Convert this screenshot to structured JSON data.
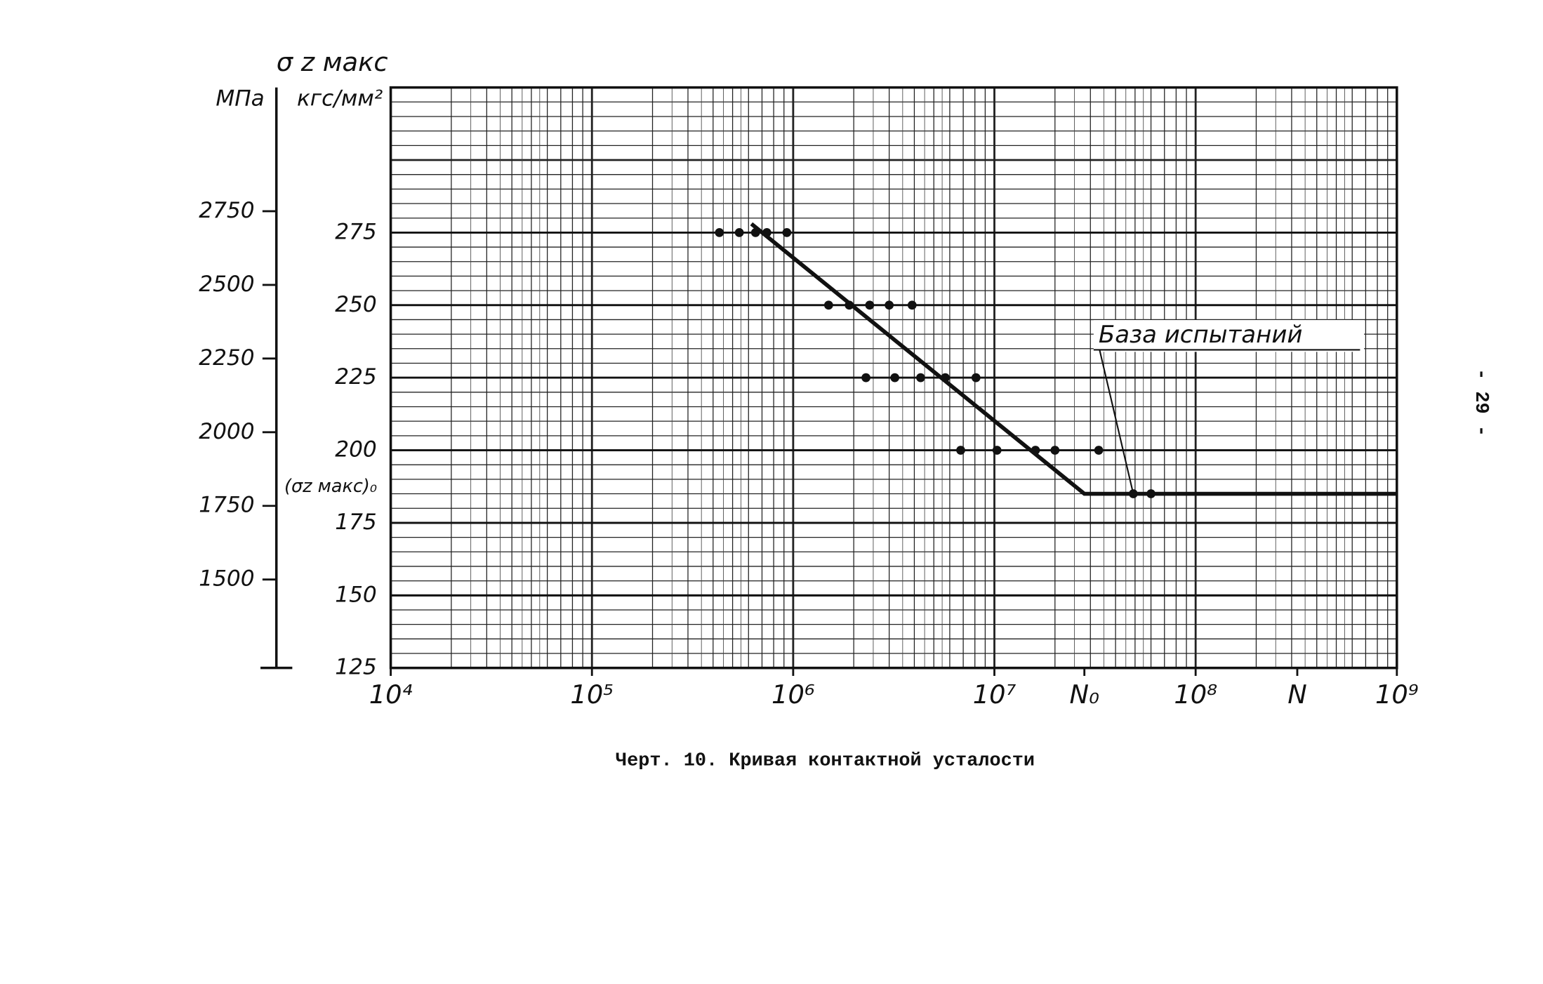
{
  "chart_data": {
    "type": "scatter",
    "title": "σ z макс",
    "y_label": "кгс/мм²",
    "y2_label": "МПа",
    "xscale": "log",
    "xlim": [
      10000,
      1000000000
    ],
    "xticks": [
      {
        "value": 10000,
        "label": "10⁴"
      },
      {
        "value": 100000,
        "label": "10⁵"
      },
      {
        "value": 1000000,
        "label": "10⁶"
      },
      {
        "value": 10000000,
        "label": "10⁷"
      },
      {
        "value": 28000000,
        "label": "N₀"
      },
      {
        "value": 100000000,
        "label": "10⁸"
      },
      {
        "value": 320000000,
        "label": "N"
      },
      {
        "value": 1000000000,
        "label": "10⁹"
      }
    ],
    "ylim": [
      125,
      325
    ],
    "yticks": [
      125,
      150,
      175,
      200,
      225,
      250,
      275
    ],
    "y2lim": [
      1200,
      3170
    ],
    "y2ticks": [
      1500,
      1750,
      2000,
      2250,
      2500,
      2750
    ],
    "grid": true,
    "series": [
      {
        "kind": "points",
        "color": "#111",
        "x": [
          430000,
          540000,
          650000,
          740000,
          930000,
          1500000,
          1900000,
          2400000,
          3000000,
          3900000,
          2300000,
          3200000,
          4300000,
          5700000,
          8100000,
          6800000,
          10300000,
          16000000,
          20000000,
          33000000,
          49000000,
          60000000
        ],
        "values": [
          275,
          275,
          275,
          275,
          275,
          250,
          250,
          250,
          250,
          250,
          225,
          225,
          225,
          225,
          225,
          200,
          200,
          200,
          200,
          200,
          185,
          185
        ]
      },
      {
        "kind": "line",
        "color": "#111",
        "x": [
          620000,
          28000000,
          1000000000
        ],
        "values": [
          278,
          185,
          185
        ]
      }
    ],
    "y_annotation": "(σz макс)₀",
    "annotation": {
      "text": "База испытаний",
      "x": 49000000,
      "y": 185
    },
    "caption": "Черт. 10. Кривая контактной усталости",
    "page_number": "- 29 -"
  }
}
